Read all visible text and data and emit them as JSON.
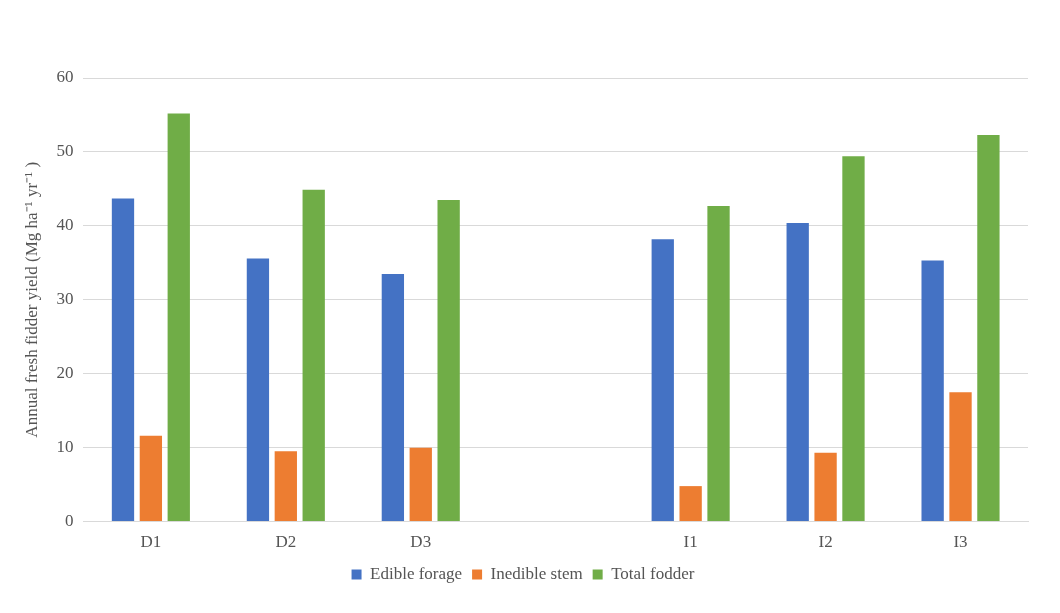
{
  "chart_data": {
    "type": "bar",
    "ylabel": "Annual fresh fidder yield (Mg ha⁻¹ yr⁻¹ )",
    "categories": [
      "D1",
      "D2",
      "D3",
      null,
      "I1",
      "I2",
      "I3"
    ],
    "series": [
      {
        "name": "Edible forage",
        "color": "#4472c4",
        "values": [
          43.7,
          35.6,
          33.5,
          null,
          38.2,
          40.4,
          35.3
        ]
      },
      {
        "name": "Inedible stem",
        "color": "#ed7d31",
        "values": [
          11.6,
          9.5,
          10.0,
          null,
          4.8,
          9.3,
          17.5
        ]
      },
      {
        "name": "Total fodder",
        "color": "#70ad47",
        "values": [
          55.2,
          44.9,
          43.5,
          null,
          42.7,
          49.4,
          52.3
        ]
      }
    ],
    "ylim": [
      0,
      60
    ],
    "yticks": [
      0,
      10,
      20,
      30,
      40,
      50,
      60
    ],
    "grid": "y",
    "legend": "bottom"
  }
}
